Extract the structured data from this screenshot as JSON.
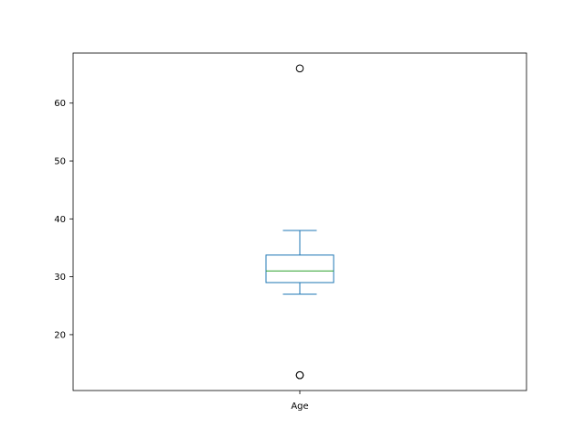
{
  "chart_data": {
    "type": "box",
    "categories": [
      "Age"
    ],
    "series": [
      {
        "whisker_low": 27,
        "q1": 29,
        "median": 31,
        "q3": 33.75,
        "whisker_high": 38,
        "outliers": [
          13,
          13,
          66
        ]
      }
    ],
    "ylim": [
      10.35,
      68.65
    ],
    "yticks": [
      20,
      30,
      40,
      50,
      60
    ],
    "title": "",
    "xlabel": "",
    "ylabel": "",
    "grid": false,
    "colors": {
      "box": "#1f77b4",
      "median": "#2ca02c",
      "outlier": "#000000",
      "axes": "#000000"
    }
  }
}
